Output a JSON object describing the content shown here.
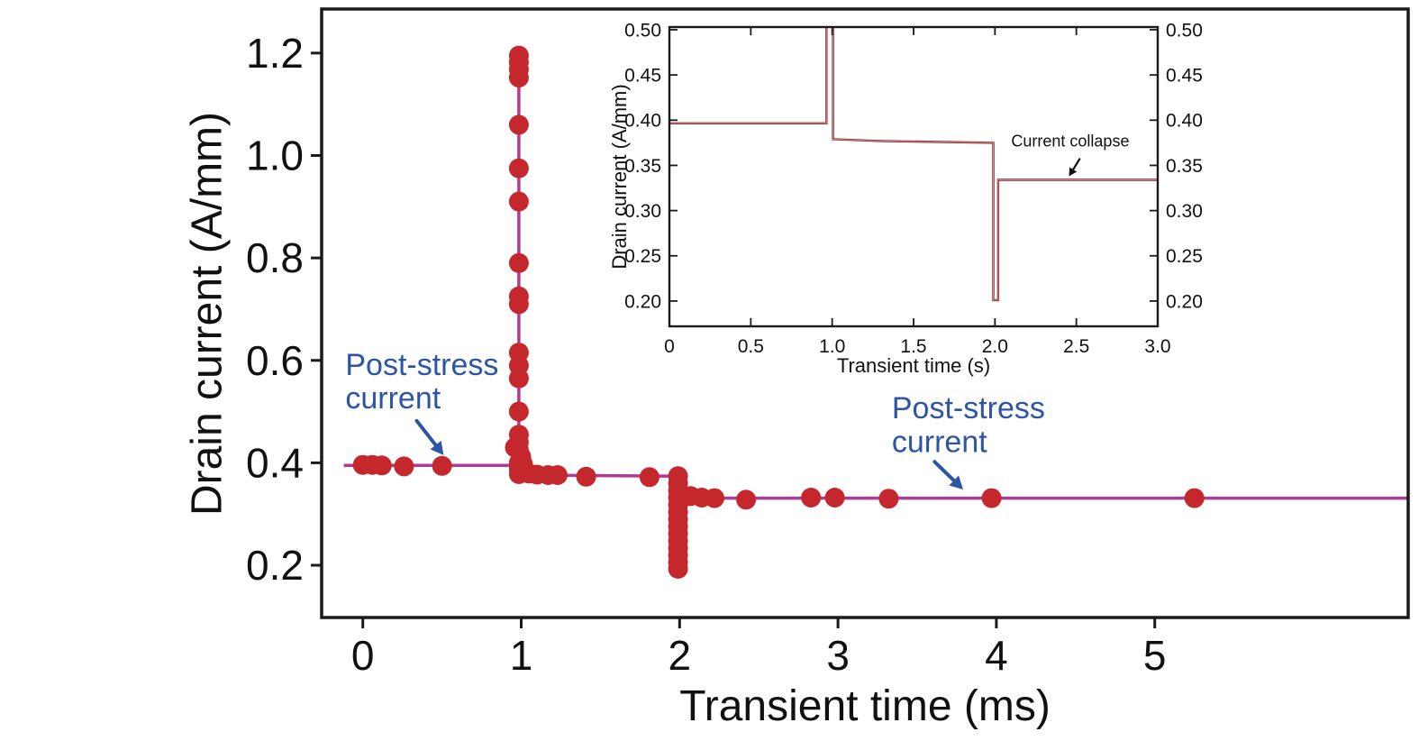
{
  "chart_data": [
    {
      "id": "main",
      "type": "scatter",
      "title": "",
      "xlabel": "Transient time (ms)",
      "ylabel": "Drain current (A/mm)",
      "xlim": [
        -0.26,
        6.6
      ],
      "ylim": [
        0.098,
        1.286
      ],
      "xticks": [
        0,
        1,
        2,
        3,
        4,
        5
      ],
      "xtick_labels": [
        "0",
        "1",
        "2",
        "3",
        "4",
        "5"
      ],
      "yticks": [
        0.2,
        0.4,
        0.6,
        0.8,
        1.0,
        1.2
      ],
      "ytick_labels": [
        "0.2",
        "0.4",
        "0.6",
        "0.8",
        "1.0",
        "1.2"
      ],
      "grid": false,
      "line_color": "#b03a97",
      "marker_color": "#c4282d",
      "line": [
        [
          -0.12,
          0.395
        ],
        [
          0.985,
          0.395
        ],
        [
          0.985,
          1.2
        ],
        [
          0.985,
          0.376
        ],
        [
          1.99,
          0.374
        ],
        [
          1.99,
          0.19
        ],
        [
          1.99,
          0.331
        ],
        [
          6.6,
          0.331
        ]
      ],
      "scatter": [
        [
          0.0,
          0.396
        ],
        [
          0.06,
          0.396
        ],
        [
          0.12,
          0.395
        ],
        [
          0.26,
          0.393
        ],
        [
          0.5,
          0.394
        ],
        [
          0.985,
          1.195
        ],
        [
          0.985,
          1.182
        ],
        [
          0.985,
          1.168
        ],
        [
          0.985,
          1.152
        ],
        [
          0.985,
          1.06
        ],
        [
          0.985,
          0.975
        ],
        [
          0.985,
          0.91
        ],
        [
          0.985,
          0.79
        ],
        [
          0.985,
          0.725
        ],
        [
          0.985,
          0.71
        ],
        [
          0.985,
          0.615
        ],
        [
          0.985,
          0.59
        ],
        [
          0.985,
          0.565
        ],
        [
          0.985,
          0.5
        ],
        [
          0.985,
          0.455
        ],
        [
          0.985,
          0.44
        ],
        [
          0.96,
          0.43
        ],
        [
          0.985,
          0.425
        ],
        [
          1.0,
          0.412
        ],
        [
          0.985,
          0.4
        ],
        [
          1.01,
          0.398
        ],
        [
          0.985,
          0.388
        ],
        [
          1.02,
          0.384
        ],
        [
          0.985,
          0.378
        ],
        [
          1.05,
          0.379
        ],
        [
          1.1,
          0.377
        ],
        [
          1.17,
          0.376
        ],
        [
          1.23,
          0.376
        ],
        [
          1.41,
          0.373
        ],
        [
          1.81,
          0.372
        ],
        [
          1.99,
          0.374
        ],
        [
          1.99,
          0.36
        ],
        [
          1.99,
          0.346
        ],
        [
          1.99,
          0.332
        ],
        [
          1.99,
          0.318
        ],
        [
          1.99,
          0.304
        ],
        [
          1.99,
          0.29
        ],
        [
          1.99,
          0.276
        ],
        [
          1.99,
          0.262
        ],
        [
          1.99,
          0.248
        ],
        [
          1.99,
          0.234
        ],
        [
          1.99,
          0.22
        ],
        [
          1.99,
          0.206
        ],
        [
          1.99,
          0.193
        ],
        [
          2.07,
          0.335
        ],
        [
          2.14,
          0.332
        ],
        [
          2.22,
          0.331
        ],
        [
          2.42,
          0.328
        ],
        [
          2.83,
          0.332
        ],
        [
          2.98,
          0.332
        ],
        [
          3.32,
          0.33
        ],
        [
          3.97,
          0.331
        ],
        [
          5.25,
          0.331
        ]
      ],
      "annotations": [
        {
          "lines": [
            "Post-stress",
            "current"
          ],
          "x": -0.11,
          "y": 0.614,
          "color": "#2c55a5",
          "arrow": {
            "x1": 0.34,
            "y1": 0.482,
            "x2": 0.51,
            "y2": 0.415
          }
        },
        {
          "lines": [
            "Post-stress",
            "current"
          ],
          "x": 3.34,
          "y": 0.529,
          "color": "#2c55a5",
          "arrow": {
            "x1": 3.61,
            "y1": 0.402,
            "x2": 3.79,
            "y2": 0.348
          }
        }
      ]
    },
    {
      "id": "inset",
      "type": "line",
      "title": "",
      "xlabel": "Transient time (s)",
      "ylabel": "Drain current (A/mm)",
      "xlim": [
        0,
        3
      ],
      "ylim": [
        0.172,
        0.503
      ],
      "xticks": [
        0,
        0.5,
        1,
        1.5,
        2,
        2.5,
        3
      ],
      "xtick_labels": [
        "0",
        "0.5",
        "1.0",
        "1.5",
        "2.0",
        "2.5",
        "3.0"
      ],
      "yticks": [
        0.2,
        0.25,
        0.3,
        0.35,
        0.4,
        0.45,
        0.5
      ],
      "ytick_labels": [
        "0.20",
        "0.25",
        "0.30",
        "0.35",
        "0.40",
        "0.45",
        "0.50"
      ],
      "grid": false,
      "line_color": "#7f1f23",
      "line_inner_color": "#d98b8b",
      "line": [
        [
          0,
          0.3965
        ],
        [
          0.965,
          0.3965
        ],
        [
          0.965,
          0.52
        ],
        [
          1.005,
          0.52
        ],
        [
          1.005,
          0.379
        ],
        [
          1.3,
          0.377
        ],
        [
          1.99,
          0.375
        ],
        [
          1.99,
          0.201
        ],
        [
          2.02,
          0.201
        ],
        [
          2.02,
          0.334
        ],
        [
          3,
          0.334
        ]
      ],
      "scatter": [],
      "annotations": [
        {
          "lines": [
            "Current collapse"
          ],
          "x": 2.1,
          "y": 0.384,
          "color": "#111111",
          "arrow": {
            "x1": 2.52,
            "y1": 0.357,
            "x2": 2.455,
            "y2": 0.338
          }
        }
      ]
    }
  ]
}
